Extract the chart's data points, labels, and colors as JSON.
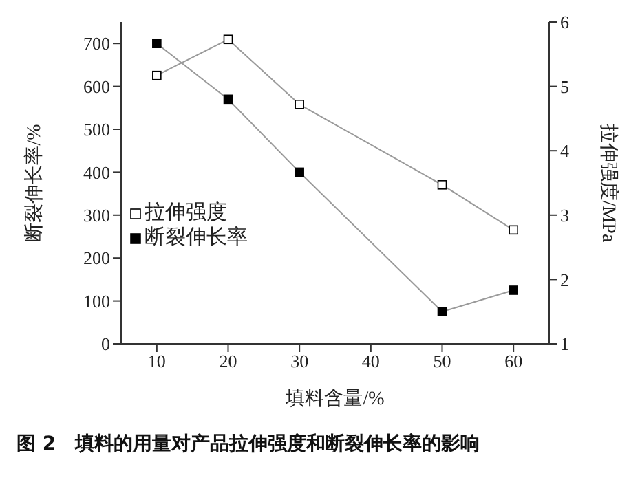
{
  "chart_data": {
    "type": "line",
    "xlabel": "填料含量/%",
    "ylabel": "断裂伸长率/%",
    "y2label": "拉伸强度/MPa",
    "x": [
      10,
      20,
      30,
      50,
      60
    ],
    "series": [
      {
        "name": "拉伸强度",
        "color": "#000000",
        "values": [
          5.17,
          5.73,
          4.72,
          3.47,
          2.77
        ],
        "axis": "y2"
      },
      {
        "name": "断裂伸长率",
        "color": "#000000",
        "values": [
          700,
          570,
          400,
          75,
          125
        ]
      }
    ],
    "xlim": [
      5,
      65
    ],
    "xticks": [
      10,
      20,
      30,
      40,
      50,
      60
    ],
    "ylim": [
      0,
      750
    ],
    "yticks": [
      0,
      100,
      200,
      300,
      400,
      500,
      600,
      700
    ],
    "y2lim": [
      1,
      6
    ],
    "y2ticks": [
      1,
      2,
      3,
      4,
      5,
      6
    ],
    "marker": "square",
    "legend": "left",
    "grid": false,
    "annotations": [
      "图 2　填料的用量对产品拉伸强度和断裂伸长率的影响"
    ]
  }
}
